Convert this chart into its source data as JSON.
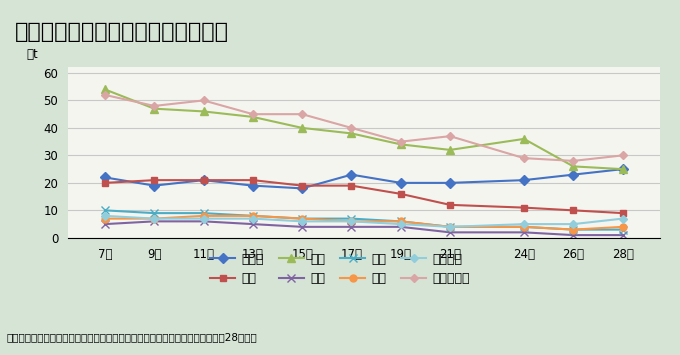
{
  "title": "各地域の年間排出量の推移及び比較",
  "ylabel": "千t",
  "source": "資料：農林水産省「園芸用施設及び農業用廃プラスチックに関する実態（平成28年）」",
  "x_labels": [
    "7年",
    "9年",
    "11年",
    "13年",
    "15年",
    "17年",
    "19年",
    "21年",
    "24年",
    "26年",
    "28年"
  ],
  "x_values": [
    7,
    9,
    11,
    13,
    15,
    17,
    19,
    21,
    24,
    26,
    28
  ],
  "ylim": [
    0,
    62
  ],
  "yticks": [
    0,
    10,
    20,
    30,
    40,
    50,
    60
  ],
  "series": [
    {
      "name": "北海道",
      "color": "#4472C4",
      "marker": "D",
      "markersize": 5,
      "values": [
        22,
        19,
        21,
        19,
        18,
        23,
        20,
        20,
        21,
        23,
        25
      ]
    },
    {
      "name": "東北",
      "color": "#C0504D",
      "marker": "s",
      "markersize": 5,
      "values": [
        20,
        21,
        21,
        21,
        19,
        19,
        16,
        12,
        11,
        10,
        9
      ]
    },
    {
      "name": "関東",
      "color": "#9BBB59",
      "marker": "^",
      "markersize": 6,
      "values": [
        54,
        47,
        46,
        44,
        40,
        38,
        34,
        32,
        36,
        26,
        25
      ]
    },
    {
      "name": "北陸",
      "color": "#8064A2",
      "marker": "x",
      "markersize": 6,
      "values": [
        5,
        6,
        6,
        5,
        4,
        4,
        4,
        2,
        2,
        1,
        1
      ]
    },
    {
      "name": "東海",
      "color": "#4BACC6",
      "marker": "x",
      "markersize": 6,
      "values": [
        10,
        9,
        9,
        8,
        7,
        7,
        6,
        4,
        4,
        3,
        3
      ]
    },
    {
      "name": "近畿",
      "color": "#F79646",
      "marker": "o",
      "markersize": 5,
      "values": [
        7,
        7,
        8,
        8,
        7,
        6,
        6,
        4,
        4,
        3,
        4
      ]
    },
    {
      "name": "中国四国",
      "color": "#92CDDC",
      "marker": "D",
      "markersize": 4,
      "values": [
        8,
        7,
        7,
        7,
        6,
        6,
        5,
        4,
        5,
        5,
        7
      ]
    },
    {
      "name": "九州・沖縄",
      "color": "#D9A5A5",
      "marker": "D",
      "markersize": 4,
      "values": [
        52,
        48,
        50,
        45,
        45,
        40,
        35,
        37,
        29,
        28,
        30
      ]
    }
  ],
  "title_bg_color": "#8DB4A8",
  "chart_bg_color": "#F5F5F0",
  "outer_bg_color": "#D6E4D6",
  "grid_color": "#C8C8C8",
  "title_fontsize": 16,
  "legend_fontsize": 9,
  "tick_fontsize": 8.5
}
